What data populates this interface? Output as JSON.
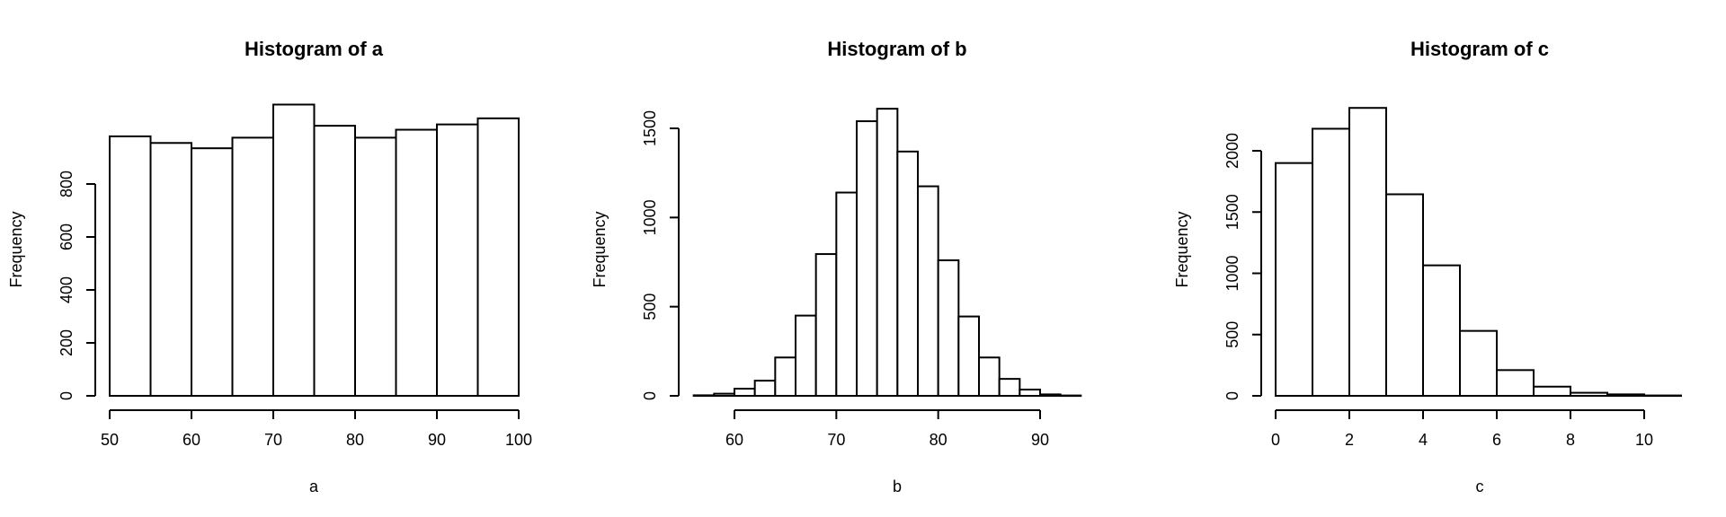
{
  "chart_data": [
    {
      "type": "bar",
      "title": "Histogram of a",
      "xlabel": "a",
      "ylabel": "Frequency",
      "xlim": [
        50,
        100
      ],
      "ylim": [
        0,
        1000
      ],
      "x_ticks": [
        50,
        60,
        70,
        80,
        90,
        100
      ],
      "y_ticks": [
        0,
        200,
        400,
        600,
        800
      ],
      "bins": [
        [
          50,
          55
        ],
        [
          55,
          60
        ],
        [
          60,
          65
        ],
        [
          65,
          70
        ],
        [
          70,
          75
        ],
        [
          75,
          80
        ],
        [
          80,
          85
        ],
        [
          85,
          90
        ],
        [
          90,
          95
        ],
        [
          95,
          100
        ]
      ],
      "values": [
        980,
        955,
        935,
        975,
        1100,
        1020,
        975,
        1005,
        1025,
        1048
      ]
    },
    {
      "type": "bar",
      "title": "Histogram of b",
      "xlabel": "b",
      "ylabel": "Frequency",
      "xlim": [
        56,
        96
      ],
      "ylim": [
        0,
        1600
      ],
      "x_ticks": [
        60,
        70,
        80,
        90
      ],
      "y_ticks": [
        0,
        500,
        1000,
        1500
      ],
      "bins": [
        [
          56,
          58
        ],
        [
          58,
          60
        ],
        [
          60,
          62
        ],
        [
          62,
          64
        ],
        [
          64,
          66
        ],
        [
          66,
          68
        ],
        [
          68,
          70
        ],
        [
          70,
          72
        ],
        [
          72,
          74
        ],
        [
          74,
          76
        ],
        [
          76,
          78
        ],
        [
          78,
          80
        ],
        [
          80,
          82
        ],
        [
          82,
          84
        ],
        [
          84,
          86
        ],
        [
          86,
          88
        ],
        [
          88,
          90
        ],
        [
          90,
          92
        ],
        [
          92,
          94
        ]
      ],
      "values": [
        3,
        12,
        40,
        85,
        215,
        450,
        795,
        1140,
        1540,
        1610,
        1370,
        1175,
        760,
        445,
        215,
        95,
        35,
        8,
        2
      ]
    },
    {
      "type": "bar",
      "title": "Histogram of c",
      "xlabel": "c",
      "ylabel": "Frequency",
      "xlim": [
        0,
        11
      ],
      "ylim": [
        0,
        2300
      ],
      "x_ticks": [
        0,
        2,
        4,
        6,
        8,
        10
      ],
      "y_ticks": [
        0,
        500,
        1000,
        1500,
        2000
      ],
      "bins": [
        [
          0,
          1
        ],
        [
          1,
          2
        ],
        [
          2,
          3
        ],
        [
          3,
          4
        ],
        [
          4,
          5
        ],
        [
          5,
          6
        ],
        [
          6,
          7
        ],
        [
          7,
          8
        ],
        [
          8,
          9
        ],
        [
          9,
          10
        ],
        [
          10,
          11
        ]
      ],
      "values": [
        1900,
        2180,
        2350,
        1645,
        1065,
        530,
        210,
        75,
        25,
        12,
        3
      ]
    }
  ]
}
